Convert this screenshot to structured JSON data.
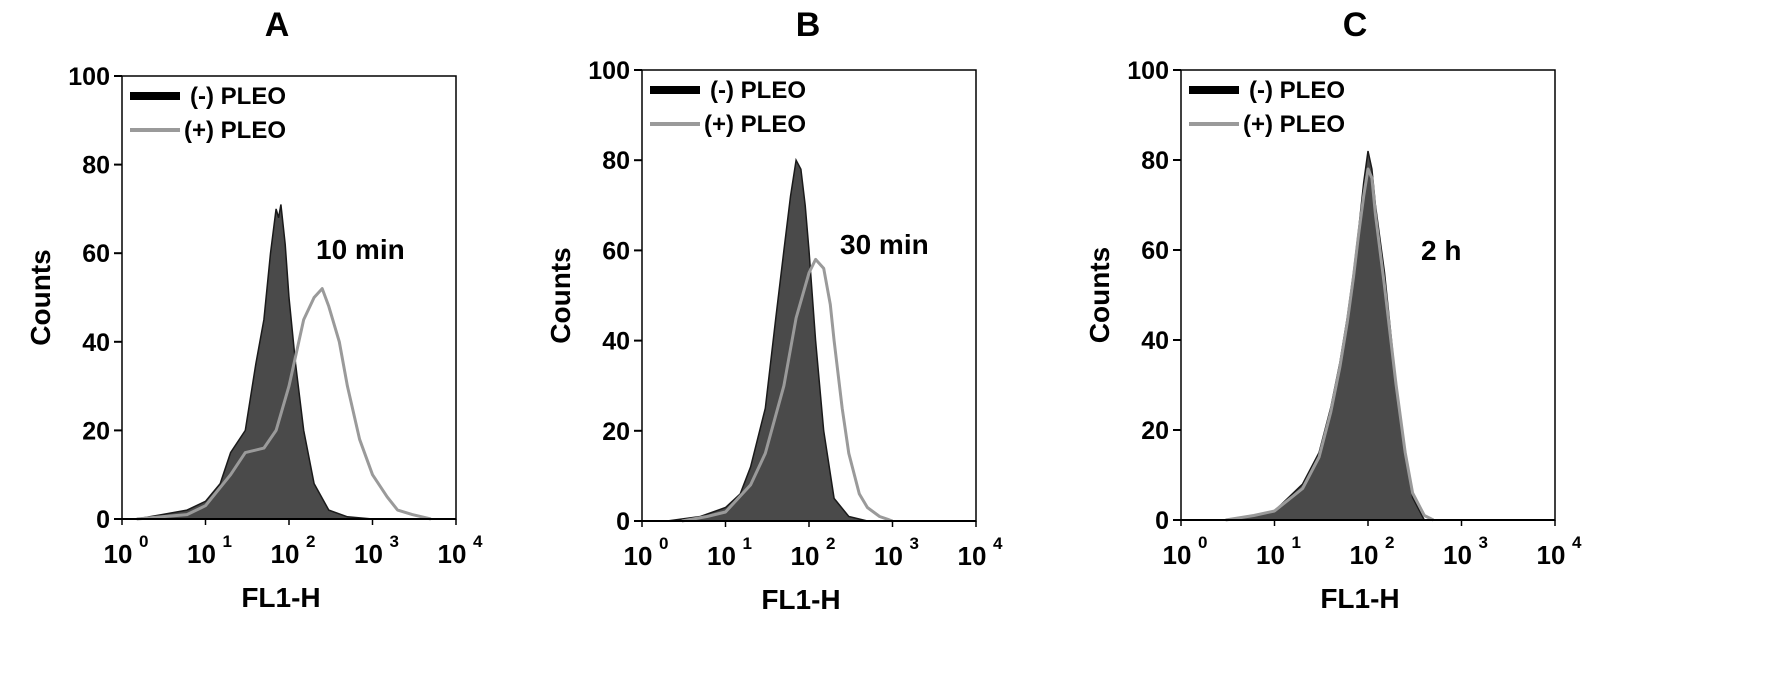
{
  "chart_data": [
    {
      "type": "area",
      "panel_label": "A",
      "xlabel": "FL1-H",
      "ylabel": "Counts",
      "x_scale": "log",
      "xlim": [
        1,
        10000
      ],
      "ylim": [
        0,
        100
      ],
      "x_ticks": [
        {
          "value": 1,
          "base": "10",
          "exp": "0"
        },
        {
          "value": 10,
          "base": "10",
          "exp": "1"
        },
        {
          "value": 100,
          "base": "10",
          "exp": "2"
        },
        {
          "value": 1000,
          "base": "10",
          "exp": "3"
        },
        {
          "value": 10000,
          "base": "10",
          "exp": "4"
        }
      ],
      "y_ticks": [
        "0",
        "20",
        "40",
        "60",
        "80",
        "100"
      ],
      "annotation": "10 min",
      "legend": {
        "position": "top-left"
      },
      "series": [
        {
          "name": "(-) PLEO",
          "color": "#4a4a4a",
          "style": "filled",
          "x": [
            1.5,
            3,
            6,
            10,
            15,
            20,
            30,
            40,
            50,
            60,
            70,
            75,
            80,
            90,
            100,
            120,
            150,
            200,
            300,
            500,
            1000
          ],
          "y": [
            0,
            1,
            2,
            4,
            8,
            15,
            20,
            35,
            45,
            60,
            70,
            68,
            71,
            62,
            50,
            35,
            20,
            8,
            2,
            0.5,
            0
          ]
        },
        {
          "name": "(+) PLEO",
          "color": "#9a9a9a",
          "style": "line",
          "x": [
            1.5,
            3,
            6,
            10,
            20,
            30,
            50,
            70,
            100,
            150,
            200,
            250,
            300,
            400,
            500,
            700,
            1000,
            1500,
            2000,
            3000,
            5000
          ],
          "y": [
            0,
            0.5,
            1,
            3,
            10,
            15,
            16,
            20,
            30,
            45,
            50,
            52,
            48,
            40,
            30,
            18,
            10,
            5,
            2,
            1,
            0
          ]
        }
      ]
    },
    {
      "type": "area",
      "panel_label": "B",
      "xlabel": "FL1-H",
      "ylabel": "Counts",
      "x_scale": "log",
      "xlim": [
        1,
        10000
      ],
      "ylim": [
        0,
        100
      ],
      "x_ticks": [
        {
          "value": 1,
          "base": "10",
          "exp": "0"
        },
        {
          "value": 10,
          "base": "10",
          "exp": "1"
        },
        {
          "value": 100,
          "base": "10",
          "exp": "2"
        },
        {
          "value": 1000,
          "base": "10",
          "exp": "3"
        },
        {
          "value": 10000,
          "base": "10",
          "exp": "4"
        }
      ],
      "y_ticks": [
        "0",
        "20",
        "40",
        "60",
        "80",
        "100"
      ],
      "annotation": "30 min",
      "legend": {
        "position": "top-left"
      },
      "series": [
        {
          "name": "(-) PLEO",
          "color": "#4a4a4a",
          "style": "filled",
          "x": [
            2,
            5,
            10,
            15,
            20,
            30,
            40,
            50,
            60,
            70,
            80,
            90,
            100,
            120,
            150,
            200,
            300,
            500
          ],
          "y": [
            0,
            1,
            3,
            6,
            12,
            25,
            45,
            60,
            72,
            80,
            78,
            70,
            60,
            40,
            20,
            5,
            1,
            0
          ]
        },
        {
          "name": "(+) PLEO",
          "color": "#9a9a9a",
          "style": "line",
          "x": [
            3,
            6,
            10,
            20,
            30,
            50,
            70,
            100,
            120,
            150,
            180,
            200,
            250,
            300,
            400,
            500,
            700,
            1000
          ],
          "y": [
            0,
            1,
            2,
            8,
            15,
            30,
            45,
            55,
            58,
            56,
            48,
            40,
            25,
            15,
            6,
            3,
            1,
            0
          ]
        }
      ]
    },
    {
      "type": "area",
      "panel_label": "C",
      "xlabel": "FL1-H",
      "ylabel": "Counts",
      "x_scale": "log",
      "xlim": [
        1,
        10000
      ],
      "ylim": [
        0,
        100
      ],
      "x_ticks": [
        {
          "value": 1,
          "base": "10",
          "exp": "0"
        },
        {
          "value": 10,
          "base": "10",
          "exp": "1"
        },
        {
          "value": 100,
          "base": "10",
          "exp": "2"
        },
        {
          "value": 1000,
          "base": "10",
          "exp": "3"
        },
        {
          "value": 10000,
          "base": "10",
          "exp": "4"
        }
      ],
      "y_ticks": [
        "0",
        "20",
        "40",
        "60",
        "80",
        "100"
      ],
      "annotation": "2 h",
      "legend": {
        "position": "top-left"
      },
      "series": [
        {
          "name": "(-) PLEO",
          "color": "#4a4a4a",
          "style": "filled",
          "x": [
            3,
            6,
            10,
            20,
            30,
            40,
            50,
            60,
            70,
            80,
            90,
            100,
            110,
            120,
            150,
            200,
            250,
            300,
            400
          ],
          "y": [
            0,
            1,
            2,
            8,
            15,
            25,
            35,
            45,
            55,
            65,
            75,
            82,
            78,
            70,
            55,
            30,
            15,
            5,
            0
          ]
        },
        {
          "name": "(+) PLEO",
          "color": "#9a9a9a",
          "style": "line",
          "x": [
            3,
            6,
            10,
            20,
            30,
            40,
            50,
            60,
            70,
            80,
            90,
            100,
            110,
            120,
            150,
            200,
            250,
            300,
            400,
            500
          ],
          "y": [
            0,
            1,
            2,
            7,
            14,
            24,
            34,
            44,
            54,
            64,
            72,
            78,
            76,
            68,
            52,
            30,
            15,
            6,
            1,
            0
          ]
        }
      ]
    }
  ]
}
